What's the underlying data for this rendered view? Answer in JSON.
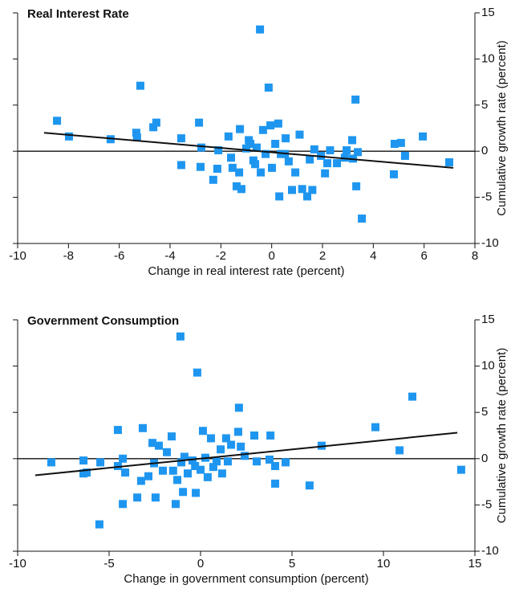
{
  "chart_data": [
    {
      "type": "scatter",
      "title": "Real Interest Rate",
      "x_label": "Change in real interest rate (percent)",
      "y_label": "Cumulative growth rate (percent)",
      "color": "#1e96f0",
      "xlim": [
        -10,
        8
      ],
      "xticks": [
        -10,
        -8,
        -6,
        -4,
        -2,
        0,
        2,
        4,
        6,
        8
      ],
      "ylim": [
        -10,
        15
      ],
      "yticks": [
        -10,
        -5,
        0,
        5,
        10,
        15
      ],
      "x": [
        -8.45,
        -7.98,
        -6.34,
        -5.33,
        -5.3,
        -5.17,
        -4.66,
        -4.54,
        -3.56,
        -3.56,
        -2.86,
        -2.77,
        -2.8,
        -2.3,
        -2.14,
        -2.1,
        -1.7,
        -1.6,
        -1.54,
        -1.38,
        -1.28,
        -1.25,
        -1.19,
        -1.0,
        -0.84,
        -0.72,
        -0.59,
        -0.46,
        -0.43,
        -0.34,
        -0.24,
        -0.12,
        -0.05,
        0.01,
        0.14,
        0.26,
        0.3,
        0.36,
        0.55,
        0.67,
        0.8,
        0.93,
        1.1,
        1.2,
        1.4,
        1.5,
        1.6,
        1.68,
        1.94,
        2.1,
        2.19,
        2.3,
        2.57,
        2.88,
        2.95,
        3.17,
        3.2,
        3.33,
        3.3,
        3.39,
        3.55,
        4.84,
        4.81,
        5.09,
        5.25,
        5.95,
        6.99,
        -0.9,
        -0.65,
        0.52
      ],
      "y": [
        3.3,
        1.6,
        1.3,
        2.0,
        1.5,
        7.1,
        2.6,
        3.1,
        1.4,
        -1.5,
        3.1,
        0.4,
        -1.7,
        -3.1,
        -1.9,
        0.1,
        1.6,
        -0.7,
        -1.8,
        -3.8,
        -2.3,
        2.4,
        -4.1,
        0.3,
        0.8,
        -1.0,
        0.4,
        13.2,
        -2.3,
        2.3,
        -0.3,
        6.9,
        2.8,
        -1.8,
        0.8,
        3.0,
        -4.9,
        -0.3,
        1.4,
        -1.1,
        -4.2,
        -2.3,
        1.8,
        -4.1,
        -4.9,
        -0.9,
        -4.2,
        0.2,
        -0.5,
        -2.4,
        -1.3,
        0.1,
        -1.3,
        -0.7,
        0.1,
        1.2,
        -0.8,
        -3.8,
        5.6,
        -0.1,
        -7.3,
        0.8,
        -2.5,
        0.9,
        -0.5,
        1.6,
        -1.2,
        1.2,
        -1.4,
        -0.3
      ],
      "trend": {
        "x": [
          -8.96,
          7.15
        ],
        "y": [
          2.0,
          -1.8
        ]
      }
    },
    {
      "type": "scatter",
      "title": "Government Consumption",
      "x_label": "Change in government consumption (percent)",
      "y_label": "Cumulative growth rate (percent)",
      "color": "#1e96f0",
      "xlim": [
        -10,
        15
      ],
      "xticks": [
        -10,
        -5,
        0,
        5,
        10,
        15
      ],
      "ylim": [
        -10,
        15
      ],
      "yticks": [
        -10,
        -5,
        0,
        5,
        10,
        15
      ],
      "x": [
        -8.16,
        -6.4,
        -6.4,
        -6.23,
        -5.48,
        -5.53,
        -4.52,
        -4.52,
        -4.25,
        -4.25,
        -4.12,
        -3.46,
        -3.25,
        -3.16,
        -2.85,
        -2.63,
        -2.54,
        -2.46,
        -2.28,
        -2.06,
        -1.84,
        -1.58,
        -1.5,
        -1.36,
        -1.27,
        -1.1,
        -1.05,
        -0.96,
        -0.88,
        -0.7,
        -0.44,
        -0.3,
        -0.26,
        -0.18,
        0.0,
        0.13,
        0.26,
        0.39,
        0.57,
        0.7,
        0.88,
        1.1,
        1.18,
        1.4,
        1.49,
        1.67,
        2.1,
        2.06,
        2.2,
        2.41,
        2.94,
        3.07,
        3.77,
        3.82,
        4.08,
        4.08,
        4.65,
        5.96,
        6.62,
        9.56,
        10.88,
        11.58,
        14.25
      ],
      "y": [
        -0.4,
        -0.2,
        -1.6,
        -1.5,
        -0.4,
        -7.1,
        3.1,
        -0.8,
        0.0,
        -4.9,
        -1.5,
        -4.2,
        -2.4,
        3.3,
        -1.9,
        1.7,
        -0.5,
        -4.2,
        1.4,
        -1.3,
        0.7,
        2.4,
        -1.3,
        -4.9,
        -2.3,
        13.2,
        -0.4,
        -3.6,
        0.2,
        -1.6,
        -0.2,
        -0.8,
        -3.7,
        9.3,
        -1.2,
        3.0,
        0.1,
        -2.0,
        2.2,
        -0.9,
        -0.3,
        1.0,
        -1.6,
        2.2,
        -0.3,
        1.5,
        5.5,
        2.9,
        1.3,
        0.3,
        2.5,
        -0.3,
        -0.1,
        2.5,
        -2.7,
        -0.8,
        -0.4,
        -2.9,
        1.4,
        3.4,
        0.9,
        6.7,
        -1.2
      ],
      "trend": {
        "x": [
          -9.04,
          14.04
        ],
        "y": [
          -1.8,
          2.8
        ]
      }
    }
  ]
}
